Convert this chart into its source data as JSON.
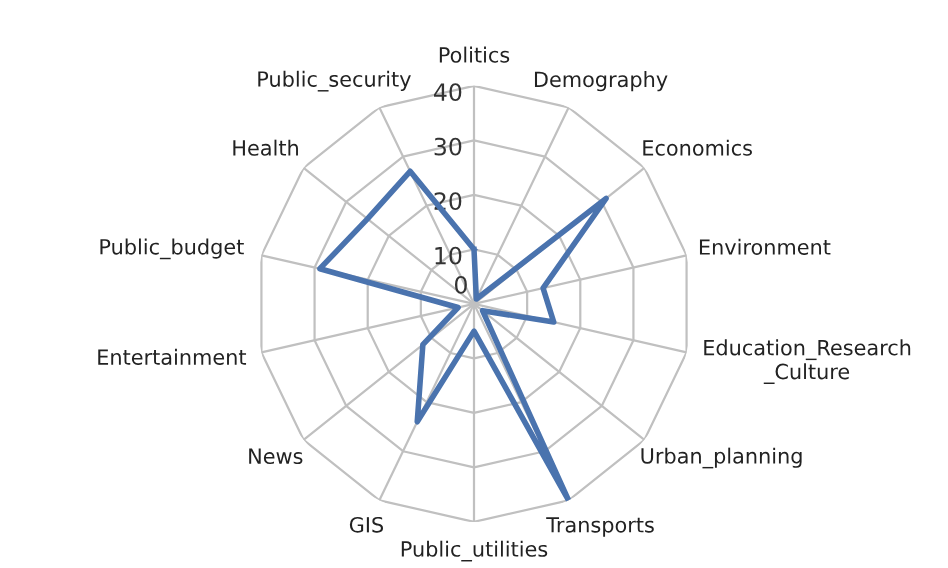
{
  "chart_data": {
    "type": "radar",
    "categories": [
      "Politics",
      "Demography",
      "Economics",
      "Environment",
      "Education_Research\n_Culture",
      "Urban_planning",
      "Transports",
      "Public_utilities",
      "GIS",
      "News",
      "Entertainment",
      "Public_budget",
      "Health",
      "Public_security"
    ],
    "series": [
      {
        "color": "#4a73ae",
        "values": [
          10,
          1,
          31,
          13,
          15,
          2,
          40,
          5,
          24,
          12,
          3,
          29,
          25,
          27
        ]
      }
    ],
    "ylim": [
      0,
      40
    ],
    "yticks": [
      0,
      10,
      20,
      30,
      40
    ],
    "grid": true,
    "marker": "none"
  }
}
